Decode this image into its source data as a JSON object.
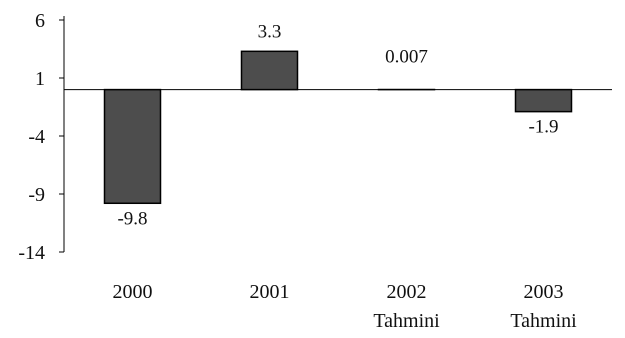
{
  "chart_data": {
    "type": "bar",
    "title": "",
    "xlabel": "",
    "ylabel": "",
    "categories": [
      [
        "2000"
      ],
      [
        "2001"
      ],
      [
        "2002",
        "Tahmini"
      ],
      [
        "2003",
        "Tahmini"
      ]
    ],
    "values": [
      -9.8,
      3.3,
      0.007,
      -1.9
    ],
    "value_labels": [
      "-9.8",
      "3.3",
      "0.007",
      "-1.9"
    ],
    "ylim": [
      -14,
      6
    ],
    "yticks": [
      6,
      1,
      -4,
      -9,
      -14
    ],
    "grid": false,
    "legend": "none",
    "colors": {
      "bar": "#4d4d4d",
      "bar_stroke": "#000000",
      "axis": "#000000"
    }
  }
}
